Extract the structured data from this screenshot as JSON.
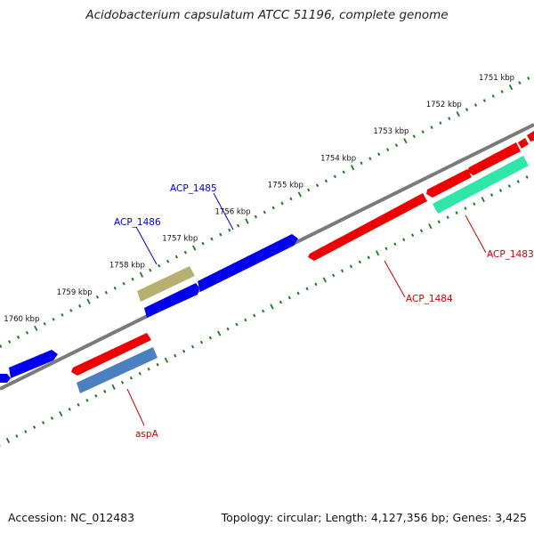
{
  "title": "Acidobacterium capsulatum ATCC 51196, complete genome",
  "footer": {
    "accession": "Accession: NC_012483",
    "summary": "Topology: circular; Length: 4,127,356 bp; Genes: 3,425"
  },
  "ticks": [
    {
      "label": "1751 kbp",
      "kbp": 1751
    },
    {
      "label": "1752 kbp",
      "kbp": 1752
    },
    {
      "label": "1753 kbp",
      "kbp": 1753
    },
    {
      "label": "1754 kbp",
      "kbp": 1754
    },
    {
      "label": "1755 kbp",
      "kbp": 1755
    },
    {
      "label": "1756 kbp",
      "kbp": 1756
    },
    {
      "label": "1757 kbp",
      "kbp": 1757
    },
    {
      "label": "1758 kbp",
      "kbp": 1758
    },
    {
      "label": "1759 kbp",
      "kbp": 1759
    },
    {
      "label": "1760 kbp",
      "kbp": 1760
    }
  ],
  "gene_labels": [
    {
      "name": "ACP_1485",
      "color": "#0000cc"
    },
    {
      "name": "ACP_1486",
      "color": "#0000cc"
    },
    {
      "name": "ACP_1483",
      "color": "#cc0000"
    },
    {
      "name": "ACP_1484",
      "color": "#cc0000"
    },
    {
      "name": "aspA",
      "color": "#cc0000"
    }
  ],
  "colors": {
    "backbone": "#7a7a7a",
    "tick": "#1f7a1f",
    "forward_gene": "#0000ee",
    "reverse_gene": "#ee0000",
    "rna_gene": "#2ee6a8",
    "olive_gene": "#b8b070",
    "steel_gene": "#4a80c0"
  }
}
